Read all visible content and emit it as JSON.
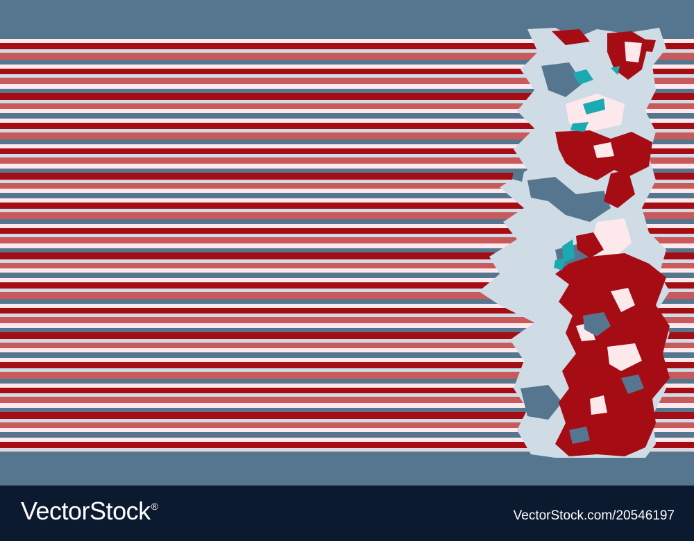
{
  "palette": {
    "steel_blue": "#56768f",
    "pale_blue": "#cfdce6",
    "pale_pink": "#fde9ec",
    "salmon": "#c85a5c",
    "crimson": "#a50c14",
    "teal": "#19aab2",
    "footer": "#0b1a2f"
  },
  "stripe_pattern": [
    "steel_blue",
    "pale_pink",
    "crimson",
    "pale_blue",
    "salmon",
    "steel_blue",
    "pale_pink",
    "crimson",
    "pale_blue",
    "salmon",
    "pale_pink",
    "steel_blue",
    "crimson",
    "pale_blue",
    "salmon",
    "pale_pink"
  ],
  "footer": {
    "brand": "VectorStock",
    "trademark": "®",
    "image_id": "VectorStock.com/20546197"
  }
}
